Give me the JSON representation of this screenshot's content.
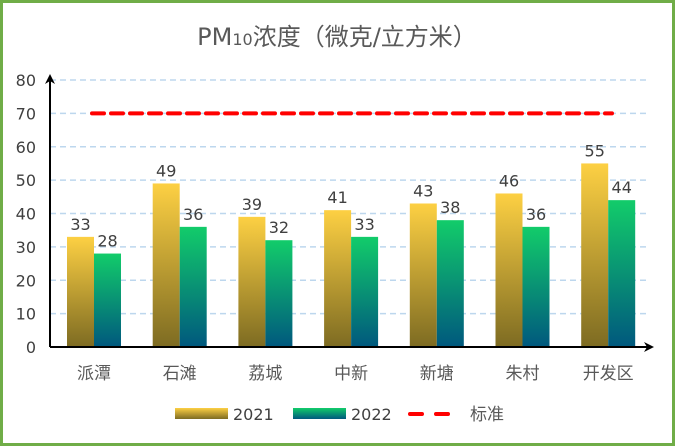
{
  "chart_data": {
    "type": "bar",
    "title": "PM10浓度（微克/立方米）",
    "title_main": "PM",
    "title_sub": "10",
    "title_rest": "浓度（微克/立方米）",
    "categories": [
      "派潭",
      "石滩",
      "荔城",
      "中新",
      "新塘",
      "朱村",
      "开发区"
    ],
    "series": [
      {
        "name": "2021",
        "values": [
          33,
          49,
          39,
          41,
          43,
          46,
          55
        ],
        "color_top": "#fdd043",
        "color_bottom": "#7d6b22"
      },
      {
        "name": "2022",
        "values": [
          28,
          36,
          32,
          33,
          38,
          36,
          44
        ],
        "color_top": "#12cc6a",
        "color_bottom": "#00587e"
      }
    ],
    "reference_line": {
      "name": "标准",
      "value": 70,
      "color": "#ff0000",
      "style": "dashed"
    },
    "ylim": [
      0,
      80
    ],
    "yticks": [
      0,
      10,
      20,
      30,
      40,
      50,
      60,
      70,
      80
    ],
    "grid": true,
    "legend_position": "bottom",
    "border_color": "#70ad47"
  }
}
